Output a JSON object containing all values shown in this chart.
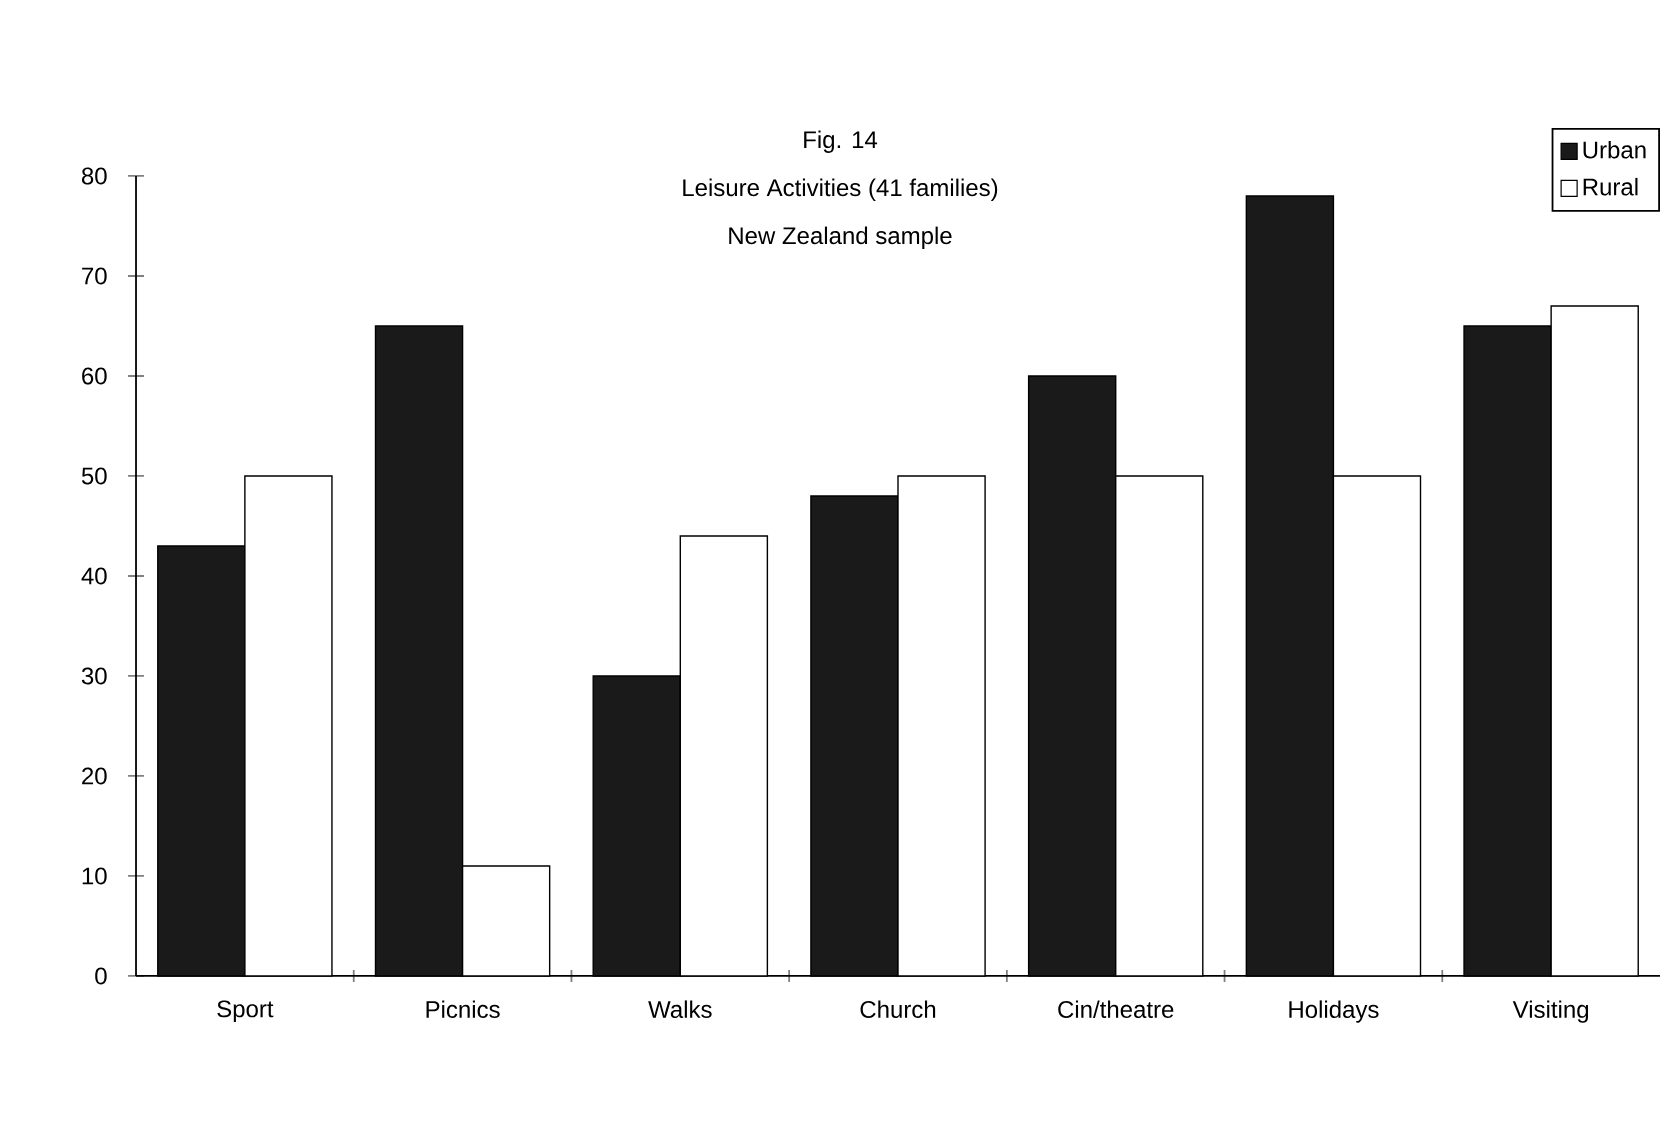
{
  "chart_data": {
    "type": "bar",
    "title": "Leisure Activities (41 families)",
    "subtitle": "New Zealand sample",
    "annotations": [
      "Fig. 14"
    ],
    "categories": [
      "Sport",
      "Picnics",
      "Walks",
      "Church",
      "Cin/theatre",
      "Holidays",
      "Visiting"
    ],
    "series": [
      {
        "name": "Urban",
        "color": "#1a1a1a",
        "values": [
          43,
          65,
          30,
          48,
          60,
          78,
          65
        ]
      },
      {
        "name": "Rural",
        "color": "#ffffff",
        "values": [
          50,
          11,
          44,
          50,
          50,
          50,
          67
        ]
      }
    ],
    "ylim": [
      0,
      80
    ],
    "yticks": [
      0,
      10,
      20,
      30,
      40,
      50,
      60,
      70,
      80
    ],
    "grid": false,
    "legend": "top right"
  }
}
